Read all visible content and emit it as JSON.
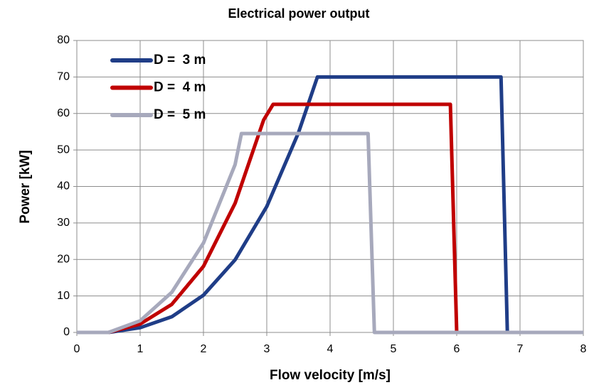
{
  "chart_data": {
    "type": "line",
    "title": "Electrical power output",
    "x_label": "Flow velocity [m/s]",
    "y_label": "Power [kW]",
    "xlim": [
      0,
      8
    ],
    "xticks": [
      0,
      1,
      2,
      3,
      4,
      5,
      6,
      7,
      8
    ],
    "ylim": [
      0,
      80
    ],
    "yticks": [
      0,
      10,
      20,
      30,
      40,
      50,
      60,
      70,
      80
    ],
    "grid": true,
    "legend": "upper left",
    "series": [
      {
        "name": "D =  3 m",
        "color": "#1f3d87",
        "x": [
          0,
          0.5,
          1,
          1.5,
          2,
          2.5,
          3,
          3.5,
          3.8,
          6.7,
          6.8,
          8
        ],
        "values": [
          0,
          0,
          1.3,
          4.3,
          10.2,
          19.9,
          34.5,
          54.7,
          70,
          70,
          0,
          0
        ]
      },
      {
        "name": "D =  4 m",
        "color": "#c00000",
        "x": [
          0,
          0.5,
          1,
          1.5,
          2,
          2.5,
          2.95,
          3.1,
          5.9,
          6.0,
          8
        ],
        "values": [
          0,
          0,
          2.3,
          7.7,
          18.1,
          35.4,
          58.2,
          62.5,
          62.5,
          0,
          0
        ]
      },
      {
        "name": "D =  5 m",
        "color": "#a7a9bc",
        "x": [
          0,
          0.5,
          1,
          1.5,
          2,
          2.5,
          2.6,
          4.6,
          4.7,
          8
        ],
        "values": [
          0,
          0,
          3.2,
          11,
          24.5,
          46,
          54.5,
          54.5,
          0,
          0
        ]
      }
    ]
  }
}
